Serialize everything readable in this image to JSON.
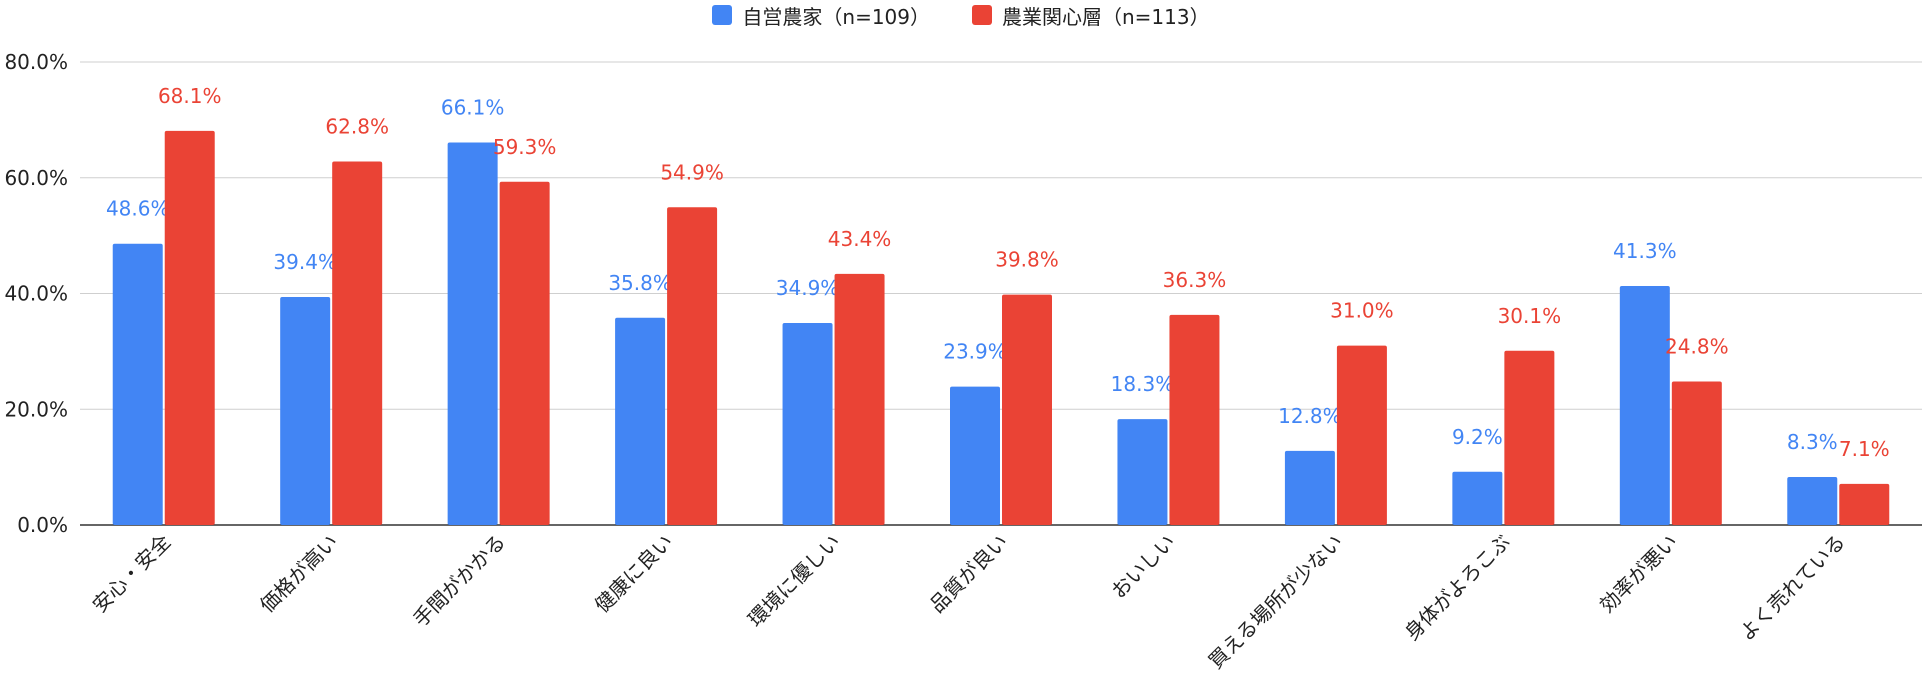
{
  "chart_data": {
    "type": "bar",
    "categories": [
      "安心・安全",
      "価格が高い",
      "手間がかかる",
      "健康に良い",
      "環境に優しい",
      "品質が良い",
      "おいしい",
      "買える場所が少ない",
      "身体がよろこぶ",
      "効率が悪い",
      "よく売れている"
    ],
    "series": [
      {
        "name": "自営農家（n=109）",
        "color": "#4285F4",
        "values": [
          48.6,
          39.4,
          66.1,
          35.8,
          34.9,
          23.9,
          18.3,
          12.8,
          9.2,
          41.3,
          8.3
        ],
        "labels": [
          "48.6%",
          "39.4%",
          "66.1%",
          "35.8%",
          "34.9%",
          "23.9%",
          "18.3%",
          "12.8%",
          "9.2%",
          "41.3%",
          "8.3%"
        ]
      },
      {
        "name": "農業関心層（n=113）",
        "color": "#EA4335",
        "values": [
          68.1,
          62.8,
          59.3,
          54.9,
          43.4,
          39.8,
          36.3,
          31.0,
          30.1,
          24.8,
          7.1
        ],
        "labels": [
          "68.1%",
          "62.8%",
          "59.3%",
          "54.9%",
          "43.4%",
          "39.8%",
          "36.3%",
          "31.0%",
          "30.1%",
          "24.8%",
          "7.1%"
        ]
      }
    ],
    "ylim": [
      0,
      80
    ],
    "yticks": [
      0,
      20,
      40,
      60,
      80
    ],
    "ytick_labels": [
      "0.0%",
      "20.0%",
      "40.0%",
      "60.0%",
      "80.0%"
    ],
    "grid": true,
    "legend_position": "top-center"
  }
}
